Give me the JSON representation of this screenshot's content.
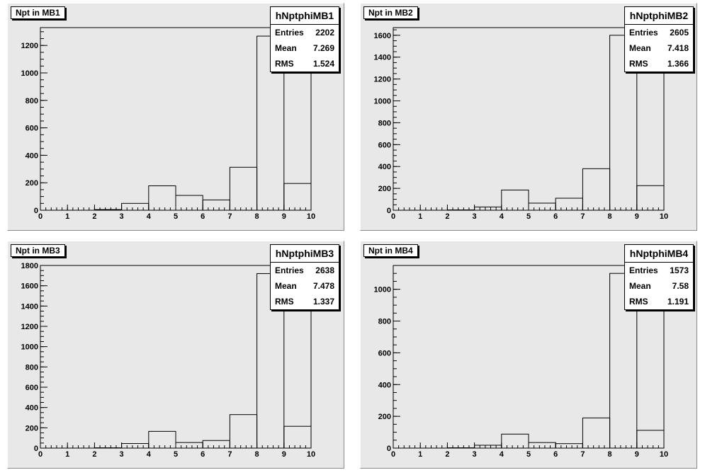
{
  "chart_data": [
    {
      "type": "histogram",
      "title": "Npt in MB1",
      "stats": {
        "name": "hNptphiMB1",
        "entries_label": "Entries",
        "entries": "2202",
        "mean_label": "Mean",
        "mean": "7.269",
        "rms_label": "RMS",
        "rms": "1.524"
      },
      "bin_edges": [
        0,
        1,
        2,
        3,
        4,
        5,
        6,
        7,
        8,
        9,
        10
      ],
      "values": [
        0,
        0,
        5,
        50,
        178,
        108,
        75,
        313,
        1268,
        195
      ],
      "xlim": [
        0,
        10
      ],
      "ylim": [
        0,
        1330
      ],
      "x_ticks": [
        0,
        1,
        2,
        3,
        4,
        5,
        6,
        7,
        8,
        9,
        10
      ],
      "y_ticks": [
        0,
        200,
        400,
        600,
        800,
        1000,
        1200
      ]
    },
    {
      "type": "histogram",
      "title": "Npt in MB2",
      "stats": {
        "name": "hNptphiMB2",
        "entries_label": "Entries",
        "entries": "2605",
        "mean_label": "Mean",
        "mean": "7.418",
        "rms_label": "RMS",
        "rms": "1.366"
      },
      "bin_edges": [
        0,
        1,
        2,
        3,
        4,
        5,
        6,
        7,
        8,
        9,
        10
      ],
      "values": [
        0,
        0,
        3,
        30,
        185,
        65,
        110,
        380,
        1600,
        225
      ],
      "xlim": [
        0,
        10
      ],
      "ylim": [
        0,
        1670
      ],
      "x_ticks": [
        0,
        1,
        2,
        3,
        4,
        5,
        6,
        7,
        8,
        9,
        10
      ],
      "y_ticks": [
        0,
        200,
        400,
        600,
        800,
        1000,
        1200,
        1400,
        1600
      ]
    },
    {
      "type": "histogram",
      "title": "Npt in MB3",
      "stats": {
        "name": "hNptphiMB3",
        "entries_label": "Entries",
        "entries": "2638",
        "mean_label": "Mean",
        "mean": "7.478",
        "rms_label": "RMS",
        "rms": "1.337"
      },
      "bin_edges": [
        0,
        1,
        2,
        3,
        4,
        5,
        6,
        7,
        8,
        9,
        10
      ],
      "values": [
        0,
        0,
        3,
        45,
        165,
        55,
        75,
        330,
        1720,
        215
      ],
      "xlim": [
        0,
        10
      ],
      "ylim": [
        0,
        1800
      ],
      "x_ticks": [
        0,
        1,
        2,
        3,
        4,
        5,
        6,
        7,
        8,
        9,
        10
      ],
      "y_ticks": [
        0,
        200,
        400,
        600,
        800,
        1000,
        1200,
        1400,
        1600,
        1800
      ]
    },
    {
      "type": "histogram",
      "title": "Npt in MB4",
      "stats": {
        "name": "hNptphiMB4",
        "entries_label": "Entries",
        "entries": "1573",
        "mean_label": "Mean",
        "mean": "7.58",
        "rms_label": "RMS",
        "rms": "1.191"
      },
      "bin_edges": [
        0,
        1,
        2,
        3,
        4,
        5,
        6,
        7,
        8,
        9,
        10
      ],
      "values": [
        0,
        0,
        2,
        18,
        88,
        35,
        28,
        190,
        1100,
        112
      ],
      "xlim": [
        0,
        10
      ],
      "ylim": [
        0,
        1150
      ],
      "x_ticks": [
        0,
        1,
        2,
        3,
        4,
        5,
        6,
        7,
        8,
        9,
        10
      ],
      "y_ticks": [
        0,
        200,
        400,
        600,
        800,
        1000
      ]
    }
  ]
}
